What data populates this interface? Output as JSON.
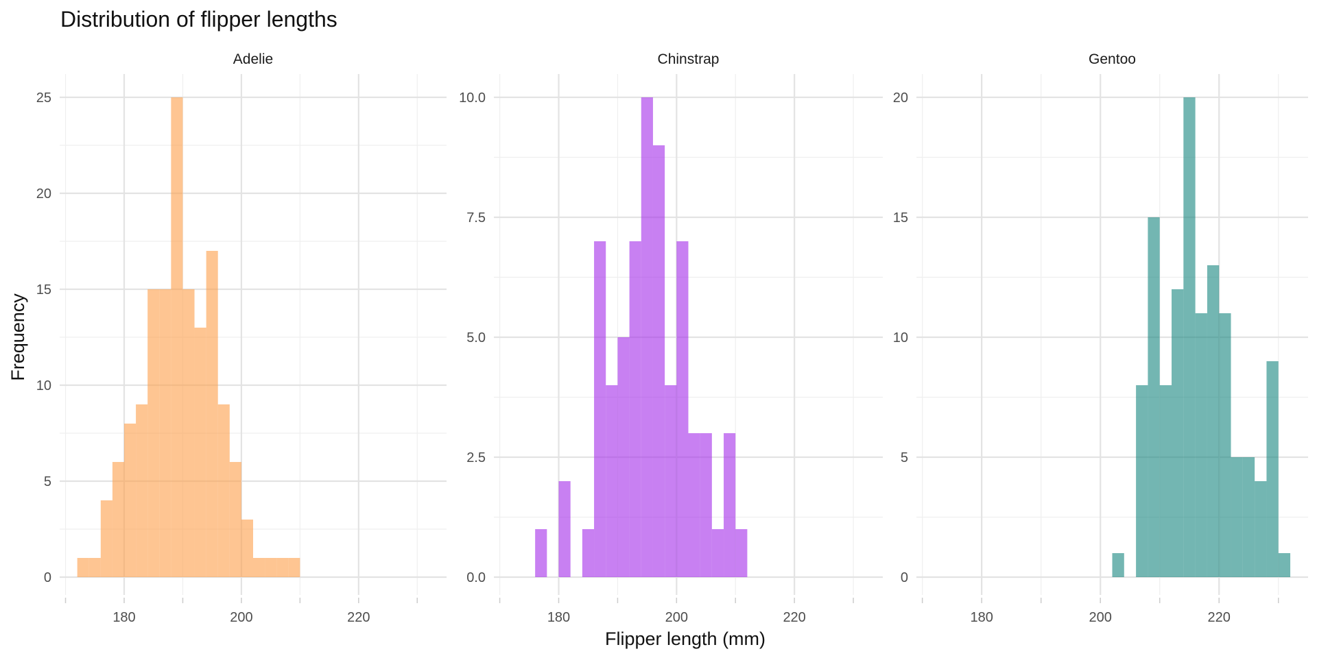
{
  "colors": {
    "Adelie": "#FD9E49",
    "Chinstrap": "#A32CEA",
    "Gentoo": "#16857E"
  },
  "chart_data": {
    "type": "bar",
    "title": "Distribution of flipper lengths",
    "xlabel": "Flipper length (mm)",
    "ylabel": "Frequency",
    "x_ticks": [
      180,
      200,
      220
    ],
    "xlim": [
      169,
      235
    ],
    "bin_width": 2,
    "grid": true,
    "panels": [
      {
        "name": "Adelie",
        "ylim": [
          0,
          25
        ],
        "y_ticks": [
          0,
          5,
          10,
          15,
          20,
          25
        ],
        "y_tick_labels": [
          "0",
          "5",
          "10",
          "15",
          "20",
          "25"
        ],
        "bins": [
          {
            "x": 172,
            "count": 1
          },
          {
            "x": 174,
            "count": 1
          },
          {
            "x": 176,
            "count": 4
          },
          {
            "x": 178,
            "count": 6
          },
          {
            "x": 180,
            "count": 8
          },
          {
            "x": 182,
            "count": 9
          },
          {
            "x": 184,
            "count": 15
          },
          {
            "x": 186,
            "count": 15
          },
          {
            "x": 188,
            "count": 25
          },
          {
            "x": 190,
            "count": 15
          },
          {
            "x": 192,
            "count": 13
          },
          {
            "x": 194,
            "count": 17
          },
          {
            "x": 196,
            "count": 9
          },
          {
            "x": 198,
            "count": 6
          },
          {
            "x": 200,
            "count": 3
          },
          {
            "x": 202,
            "count": 1
          },
          {
            "x": 204,
            "count": 1
          },
          {
            "x": 206,
            "count": 1
          },
          {
            "x": 208,
            "count": 1
          }
        ]
      },
      {
        "name": "Chinstrap",
        "ylim": [
          0,
          10
        ],
        "y_ticks": [
          0,
          2.5,
          5,
          7.5,
          10
        ],
        "y_tick_labels": [
          "0.0",
          "2.5",
          "5.0",
          "7.5",
          "10.0"
        ],
        "bins": [
          {
            "x": 176,
            "count": 1
          },
          {
            "x": 180,
            "count": 2
          },
          {
            "x": 184,
            "count": 1
          },
          {
            "x": 186,
            "count": 7
          },
          {
            "x": 188,
            "count": 4
          },
          {
            "x": 190,
            "count": 5
          },
          {
            "x": 192,
            "count": 7
          },
          {
            "x": 194,
            "count": 10
          },
          {
            "x": 196,
            "count": 9
          },
          {
            "x": 198,
            "count": 4
          },
          {
            "x": 200,
            "count": 7
          },
          {
            "x": 202,
            "count": 3
          },
          {
            "x": 204,
            "count": 3
          },
          {
            "x": 206,
            "count": 1
          },
          {
            "x": 208,
            "count": 3
          },
          {
            "x": 210,
            "count": 1
          }
        ]
      },
      {
        "name": "Gentoo",
        "ylim": [
          0,
          20
        ],
        "y_ticks": [
          0,
          5,
          10,
          15,
          20
        ],
        "y_tick_labels": [
          "0",
          "5",
          "10",
          "15",
          "20"
        ],
        "bins": [
          {
            "x": 202,
            "count": 1
          },
          {
            "x": 206,
            "count": 8
          },
          {
            "x": 208,
            "count": 15
          },
          {
            "x": 210,
            "count": 8
          },
          {
            "x": 212,
            "count": 12
          },
          {
            "x": 214,
            "count": 20
          },
          {
            "x": 216,
            "count": 11
          },
          {
            "x": 218,
            "count": 13
          },
          {
            "x": 220,
            "count": 11
          },
          {
            "x": 222,
            "count": 5
          },
          {
            "x": 224,
            "count": 5
          },
          {
            "x": 226,
            "count": 4
          },
          {
            "x": 228,
            "count": 9
          },
          {
            "x": 230,
            "count": 1
          }
        ]
      }
    ]
  }
}
